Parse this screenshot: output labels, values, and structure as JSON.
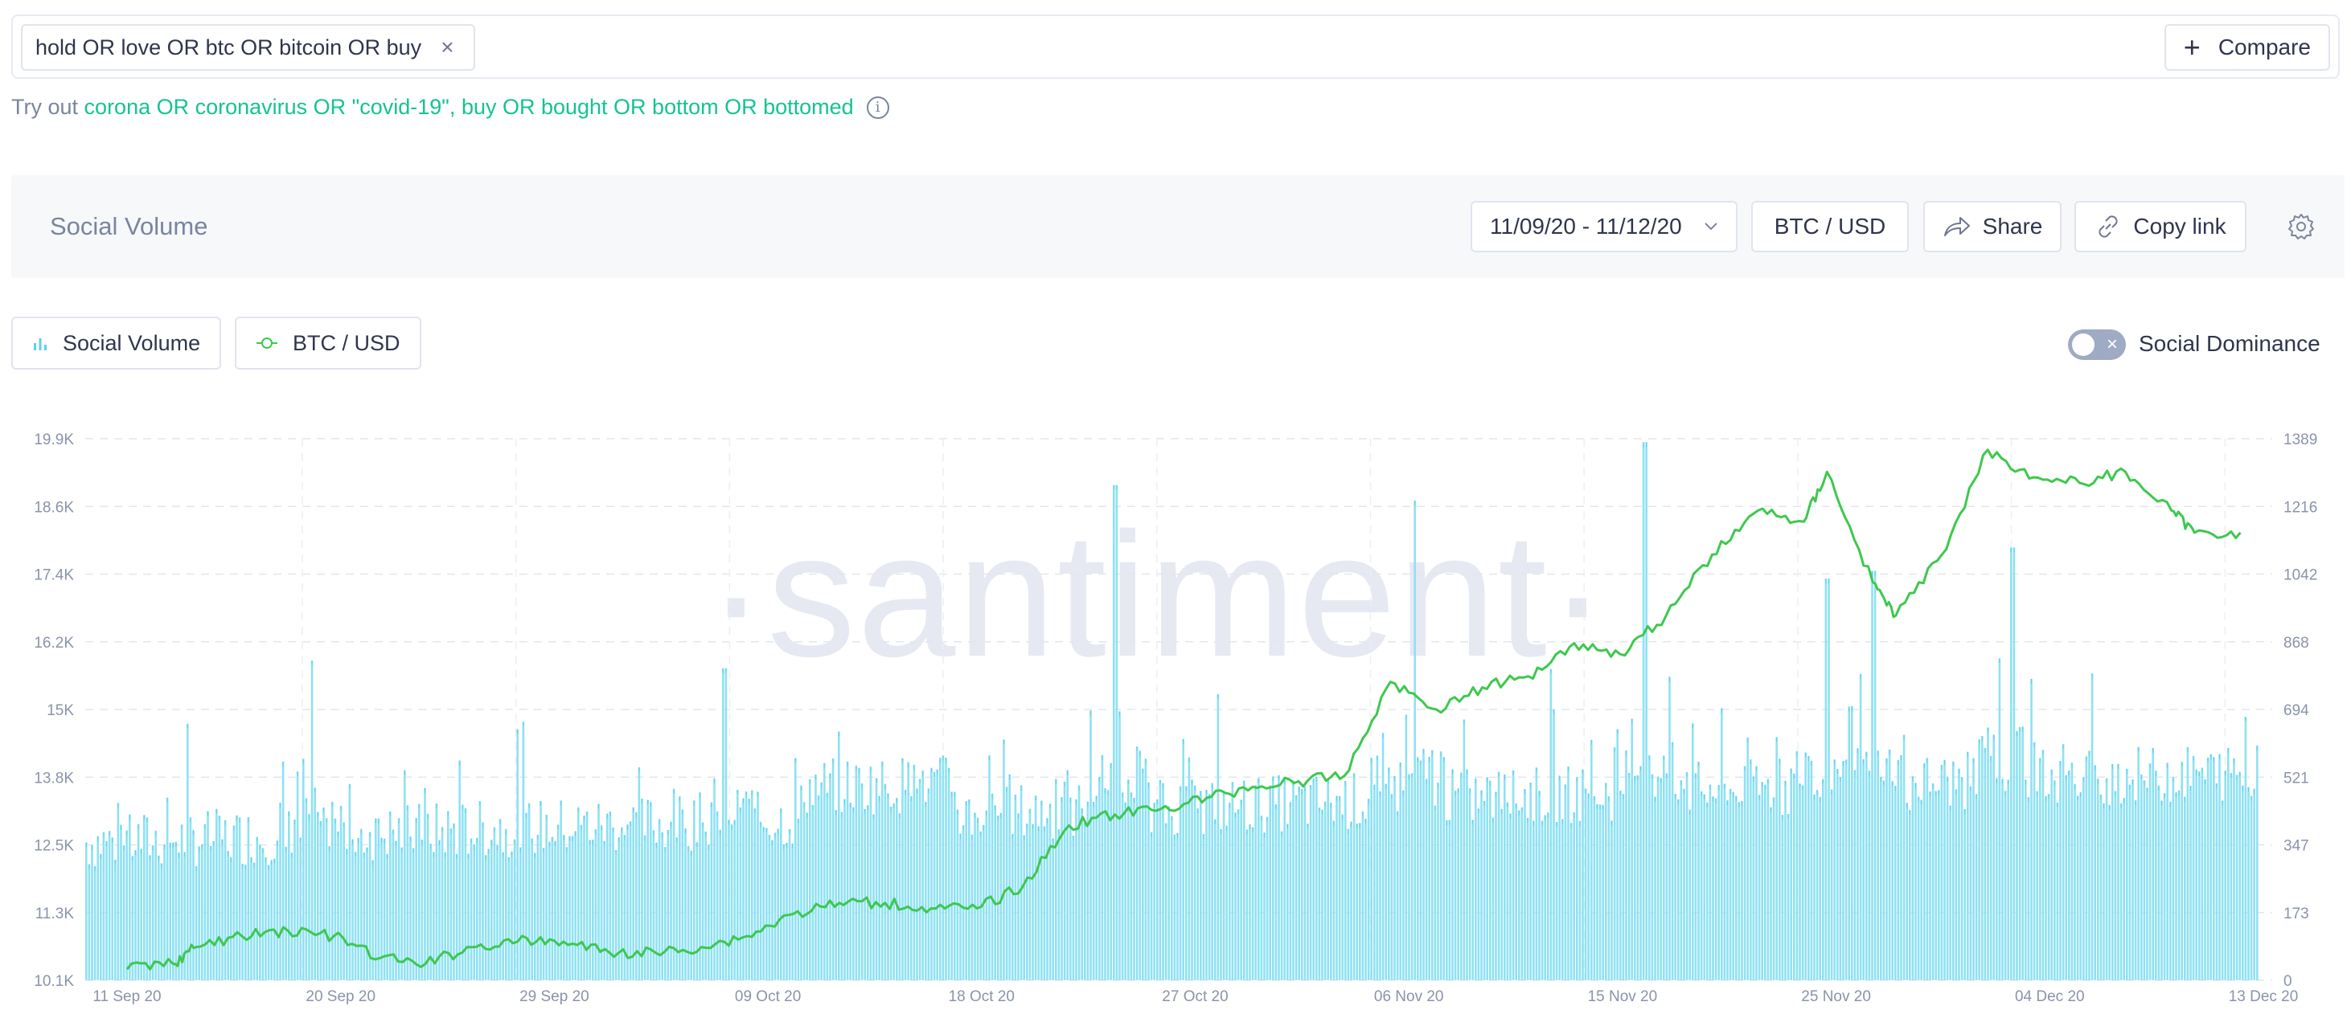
{
  "search": {
    "query": "hold OR love OR btc OR bitcoin OR buy",
    "remove_symbol": "×",
    "compare_label": "Compare"
  },
  "tryout": {
    "prefix": "Try out",
    "suggestion_1": "corona OR coronavirus OR \"covid-19\"",
    "separator": ",",
    "suggestion_2": "buy OR bought OR bottom OR bottomed",
    "info_symbol": "i"
  },
  "panel": {
    "title": "Social Volume",
    "date_range": "11/09/20 - 11/12/20",
    "pair": "BTC / USD",
    "share_label": "Share",
    "copy_label": "Copy link"
  },
  "legend": {
    "social_volume": "Social Volume",
    "btc_usd": "BTC / USD",
    "toggle_label": "Social Dominance",
    "toggle_symbol": "×"
  },
  "colors": {
    "bars": "#8fe1f3",
    "bar_edge": "#5fd0ec",
    "price_line": "#3ec84f",
    "accent": "#14c393",
    "watermark": "#e6e9f2"
  },
  "chart_data": {
    "type": "bar+line",
    "watermark": "·santiment·",
    "x_ticks": [
      "11 Sep 20",
      "20 Sep 20",
      "29 Sep 20",
      "09 Oct 20",
      "18 Oct 20",
      "27 Oct 20",
      "06 Nov 20",
      "15 Nov 20",
      "25 Nov 20",
      "04 Dec 20",
      "13 Dec 20"
    ],
    "left_axis_ticks": [
      "10.1K",
      "11.3K",
      "12.5K",
      "13.8K",
      "15K",
      "16.2K",
      "17.4K",
      "18.6K",
      "19.9K"
    ],
    "right_axis_ticks": [
      "0",
      "173",
      "347",
      "521",
      "694",
      "868",
      "1042",
      "1216",
      "1389"
    ],
    "left_axis": {
      "name": "BTC / USD",
      "min": 10100,
      "max": 19900
    },
    "right_axis": {
      "name": "Social Volume",
      "min": 0,
      "max": 1389
    },
    "x_range": {
      "start": "2020-09-11",
      "end": "2020-12-13"
    },
    "price_series": {
      "name": "BTC / USD",
      "points": [
        [
          "2020-09-11",
          10300
        ],
        [
          "2020-09-13",
          10400
        ],
        [
          "2020-09-14",
          10700
        ],
        [
          "2020-09-16",
          10900
        ],
        [
          "2020-09-18",
          11000
        ],
        [
          "2020-09-20",
          10900
        ],
        [
          "2020-09-22",
          10500
        ],
        [
          "2020-09-24",
          10400
        ],
        [
          "2020-09-26",
          10700
        ],
        [
          "2020-09-28",
          10800
        ],
        [
          "2020-09-30",
          10800
        ],
        [
          "2020-10-02",
          10600
        ],
        [
          "2020-10-04",
          10600
        ],
        [
          "2020-10-06",
          10700
        ],
        [
          "2020-10-08",
          10900
        ],
        [
          "2020-10-10",
          11300
        ],
        [
          "2020-10-12",
          11500
        ],
        [
          "2020-10-14",
          11500
        ],
        [
          "2020-10-16",
          11400
        ],
        [
          "2020-10-18",
          11400
        ],
        [
          "2020-10-20",
          11800
        ],
        [
          "2020-10-22",
          12900
        ],
        [
          "2020-10-24",
          13100
        ],
        [
          "2020-10-26",
          13200
        ],
        [
          "2020-10-28",
          13400
        ],
        [
          "2020-10-30",
          13600
        ],
        [
          "2020-11-01",
          13700
        ],
        [
          "2020-11-03",
          13800
        ],
        [
          "2020-11-05",
          15500
        ],
        [
          "2020-11-07",
          15000
        ],
        [
          "2020-11-09",
          15400
        ],
        [
          "2020-11-11",
          15600
        ],
        [
          "2020-11-13",
          16200
        ],
        [
          "2020-11-15",
          16000
        ],
        [
          "2020-11-17",
          16700
        ],
        [
          "2020-11-19",
          17800
        ],
        [
          "2020-11-21",
          18600
        ],
        [
          "2020-11-23",
          18400
        ],
        [
          "2020-11-24",
          19300
        ],
        [
          "2020-11-26",
          17300
        ],
        [
          "2020-11-27",
          16700
        ],
        [
          "2020-11-29",
          17800
        ],
        [
          "2020-12-01",
          19700
        ],
        [
          "2020-12-03",
          19200
        ],
        [
          "2020-12-05",
          19100
        ],
        [
          "2020-12-07",
          19300
        ],
        [
          "2020-12-09",
          18600
        ],
        [
          "2020-12-10",
          18200
        ],
        [
          "2020-12-12",
          18200
        ]
      ]
    },
    "volume_series": {
      "name": "Social Volume",
      "approx_range": [
        150,
        1389
      ],
      "notable_spikes": [
        [
          "2020-09-19",
          820
        ],
        [
          "2020-10-07",
          800
        ],
        [
          "2020-10-24",
          1270
        ],
        [
          "2020-11-06",
          1230
        ],
        [
          "2020-11-16",
          1380
        ],
        [
          "2020-11-24",
          1030
        ],
        [
          "2020-11-26",
          1050
        ],
        [
          "2020-12-02",
          1110
        ]
      ]
    },
    "grid": true,
    "legend_placement": "top-left"
  }
}
